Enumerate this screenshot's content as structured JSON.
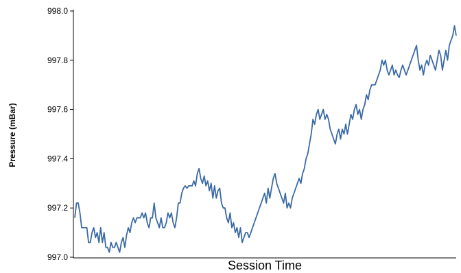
{
  "chart_data": {
    "type": "line",
    "title": "",
    "xlabel": "Session Time",
    "ylabel": "Pressure (mBar)",
    "ylim": [
      997.0,
      998.0
    ],
    "yticks": [
      "997.0",
      "997.2",
      "997.4",
      "997.6",
      "997.8",
      "998.0"
    ],
    "x_ticks_shown": false,
    "grid": false,
    "legend": "none",
    "colors": {
      "line": "#3a6aa6",
      "axis": "#000000"
    },
    "series": [
      {
        "values": [
          997.16,
          997.22,
          997.22,
          997.18,
          997.12,
          997.12,
          997.12,
          997.12,
          997.06,
          997.06,
          997.1,
          997.12,
          997.08,
          997.1,
          997.06,
          997.12,
          997.06,
          997.1,
          997.04,
          997.04,
          997.02,
          997.06,
          997.04,
          997.04,
          997.06,
          997.04,
          997.02,
          997.06,
          997.08,
          997.04,
          997.09,
          997.12,
          997.1,
          997.14,
          997.16,
          997.14,
          997.16,
          997.16,
          997.16,
          997.18,
          997.16,
          997.18,
          997.14,
          997.12,
          997.16,
          997.16,
          997.22,
          997.16,
          997.14,
          997.12,
          997.16,
          997.12,
          997.12,
          997.14,
          997.18,
          997.16,
          997.18,
          997.14,
          997.12,
          997.16,
          997.22,
          997.22,
          997.26,
          997.28,
          997.29,
          997.28,
          997.29,
          997.29,
          997.29,
          997.31,
          997.29,
          997.34,
          997.36,
          997.32,
          997.3,
          997.33,
          997.29,
          997.31,
          997.27,
          997.3,
          997.24,
          997.29,
          997.24,
          997.27,
          997.28,
          997.22,
          997.2,
          997.2,
          997.16,
          997.14,
          997.18,
          997.12,
          997.14,
          997.1,
          997.12,
          997.08,
          997.12,
          997.06,
          997.08,
          997.1,
          997.1,
          997.08,
          997.1,
          997.12,
          997.14,
          997.16,
          997.18,
          997.2,
          997.22,
          997.24,
          997.26,
          997.22,
          997.28,
          997.24,
          997.28,
          997.32,
          997.34,
          997.3,
          997.28,
          997.26,
          997.24,
          997.22,
          997.26,
          997.2,
          997.22,
          997.2,
          997.24,
          997.26,
          997.28,
          997.3,
          997.32,
          997.3,
          997.34,
          997.36,
          997.4,
          997.42,
          997.46,
          997.5,
          997.56,
          997.54,
          997.58,
          997.6,
          997.56,
          997.58,
          997.6,
          997.56,
          997.58,
          997.56,
          997.52,
          997.5,
          997.48,
          997.46,
          997.5,
          997.52,
          997.48,
          997.52,
          997.5,
          997.54,
          997.5,
          997.54,
          997.58,
          997.56,
          997.6,
          997.62,
          997.58,
          997.6,
          997.56,
          997.6,
          997.62,
          997.66,
          997.64,
          997.68,
          997.7,
          997.7,
          997.7,
          997.72,
          997.74,
          997.76,
          997.8,
          997.78,
          997.8,
          997.76,
          997.74,
          997.76,
          997.78,
          997.74,
          997.76,
          997.74,
          997.73,
          997.76,
          997.78,
          997.76,
          997.74,
          997.76,
          997.78,
          997.8,
          997.82,
          997.84,
          997.86,
          997.8,
          997.76,
          997.78,
          997.74,
          997.78,
          997.8,
          997.78,
          997.82,
          997.8,
          997.78,
          997.76,
          997.8,
          997.84,
          997.82,
          997.76,
          997.8,
          997.84,
          997.8,
          997.86,
          997.88,
          997.9,
          997.94,
          997.9
        ]
      }
    ]
  }
}
